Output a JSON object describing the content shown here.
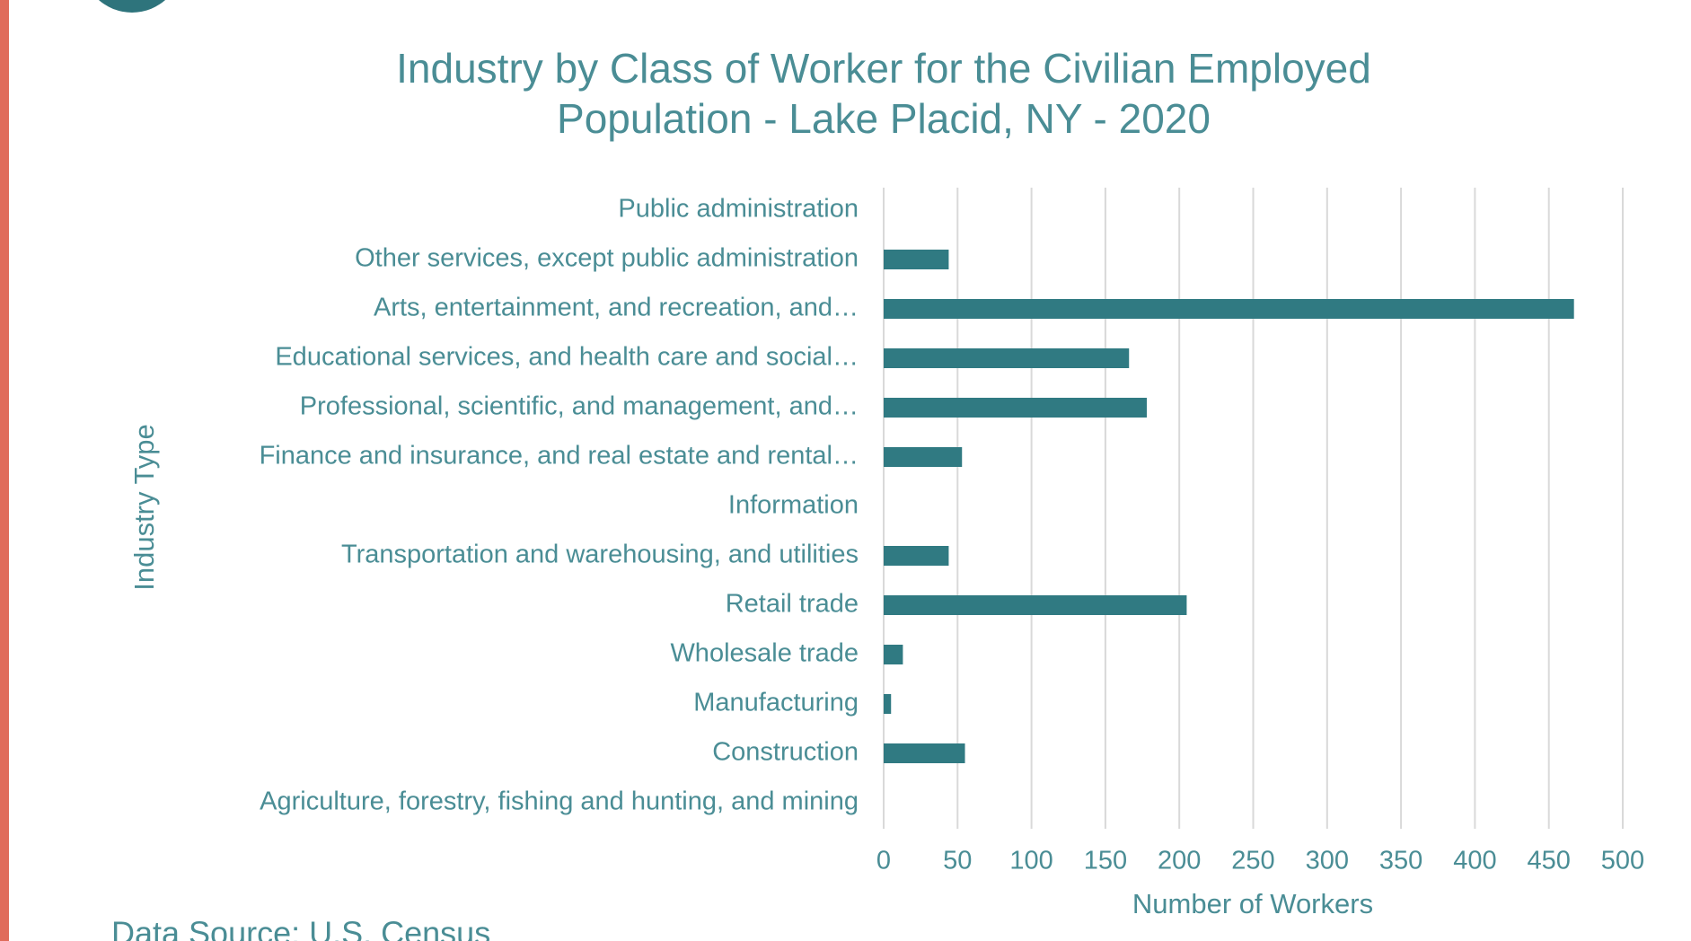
{
  "chart_data": {
    "type": "bar",
    "orientation": "horizontal",
    "title": [
      "Industry by Class of Worker for the Civilian Employed",
      "Population - Lake Placid, NY - 2020"
    ],
    "x_label": "Number  of Workers",
    "y_label": "Industry Type",
    "categories": [
      "Public administration",
      "Other services, except public administration",
      "Arts, entertainment, and recreation, and…",
      "Educational services, and health care and social…",
      "Professional, scientific, and management, and…",
      "Finance and insurance, and real estate and rental…",
      "Information",
      "Transportation and warehousing, and utilities",
      "Retail trade",
      "Wholesale trade",
      "Manufacturing",
      "Construction",
      "Agriculture, forestry, fishing and hunting, and mining"
    ],
    "values": [
      0,
      44,
      467,
      166,
      178,
      53,
      0,
      44,
      205,
      13,
      5,
      55,
      0
    ],
    "color": "#307a82",
    "xlim": [
      0,
      500
    ],
    "xticks": [
      0,
      50,
      100,
      150,
      200,
      250,
      300,
      350,
      400,
      450,
      500
    ],
    "grid": true
  },
  "source": "Data Source: U.S. Census"
}
